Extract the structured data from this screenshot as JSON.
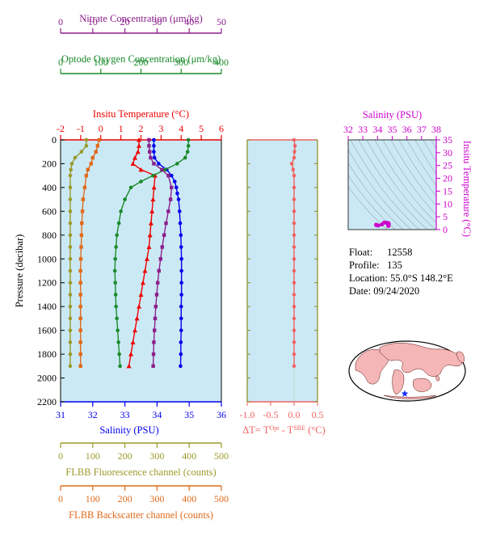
{
  "colors": {
    "nitrate": "#8b1f8b",
    "oxygen": "#1a8a2a",
    "temperature": "#ee0000",
    "salinity": "#0000ee",
    "fluorescence": "#9a9a2a",
    "backscatter": "#e06a1a",
    "deltaT": "#f26060",
    "ts": "#cc00cc",
    "plot_bg": "#cbe9f5"
  },
  "info": {
    "float_label": "Float:",
    "float_value": "12558",
    "profile_label": "Profile:",
    "profile_value": "135",
    "location_label": "Location:",
    "location_value": "55.0°S  148.2°E",
    "date_label": "Date:",
    "date_value": "09/24/2020"
  },
  "chart_data": [
    {
      "type": "line",
      "panel": "main profile",
      "ylabel": "Pressure (decibar)",
      "y_axis": {
        "ticks": [
          0,
          200,
          400,
          600,
          800,
          1000,
          1200,
          1400,
          1600,
          1800,
          2000,
          2200
        ],
        "range": [
          0,
          2200
        ],
        "inverted": true
      },
      "axes": [
        {
          "key": "nitrate",
          "label": "Nitrate Concentration (μm/kg)",
          "range": [
            0,
            50
          ],
          "ticks": [
            0,
            10,
            20,
            30,
            40,
            50
          ],
          "position": "top-1"
        },
        {
          "key": "oxygen",
          "label": "Optode Oxygen Concentration (μm/kg)",
          "range": [
            0,
            400
          ],
          "ticks": [
            0,
            100,
            200,
            300,
            400
          ],
          "position": "top-2"
        },
        {
          "key": "temperature",
          "label": "Insitu Temperature (°C)",
          "range": [
            -2,
            6
          ],
          "ticks": [
            -2,
            -1,
            0,
            1,
            2,
            3,
            4,
            5,
            6
          ],
          "position": "top-3"
        },
        {
          "key": "salinity",
          "label": "Salinity (PSU)",
          "range": [
            31,
            36
          ],
          "ticks": [
            31,
            32,
            33,
            34,
            35,
            36
          ],
          "position": "bottom-1"
        },
        {
          "key": "fluorescence",
          "label": "FLBB Fluorescence channel (counts)",
          "range": [
            0,
            500
          ],
          "ticks": [
            0,
            100,
            200,
            300,
            400,
            500
          ],
          "position": "bottom-2"
        },
        {
          "key": "backscatter",
          "label": "FLBB Backscatter channel (counts)",
          "range": [
            0,
            500
          ],
          "ticks": [
            0,
            100,
            200,
            300,
            400,
            500
          ],
          "position": "bottom-3"
        }
      ],
      "series": [
        {
          "name": "Salinity",
          "axis": "salinity",
          "marker": "circle",
          "points": [
            [
              33.9,
              0
            ],
            [
              33.9,
              50
            ],
            [
              33.9,
              100
            ],
            [
              33.92,
              150
            ],
            [
              34.05,
              200
            ],
            [
              34.3,
              250
            ],
            [
              34.45,
              300
            ],
            [
              34.55,
              350
            ],
            [
              34.6,
              400
            ],
            [
              34.63,
              450
            ],
            [
              34.67,
              500
            ],
            [
              34.7,
              600
            ],
            [
              34.72,
              700
            ],
            [
              34.74,
              800
            ],
            [
              34.75,
              900
            ],
            [
              34.76,
              1000
            ],
            [
              34.76,
              1100
            ],
            [
              34.76,
              1200
            ],
            [
              34.76,
              1300
            ],
            [
              34.75,
              1400
            ],
            [
              34.75,
              1500
            ],
            [
              34.75,
              1600
            ],
            [
              34.74,
              1700
            ],
            [
              34.74,
              1800
            ],
            [
              34.73,
              1900
            ]
          ]
        },
        {
          "name": "Insitu Temperature",
          "axis": "temperature",
          "marker": "triangle",
          "points": [
            [
              1.9,
              0
            ],
            [
              1.9,
              50
            ],
            [
              1.85,
              100
            ],
            [
              1.7,
              150
            ],
            [
              1.6,
              200
            ],
            [
              2.0,
              250
            ],
            [
              2.7,
              300
            ],
            [
              2.65,
              400
            ],
            [
              2.6,
              500
            ],
            [
              2.55,
              600
            ],
            [
              2.5,
              700
            ],
            [
              2.45,
              800
            ],
            [
              2.4,
              900
            ],
            [
              2.3,
              1000
            ],
            [
              2.2,
              1100
            ],
            [
              2.1,
              1200
            ],
            [
              2.0,
              1300
            ],
            [
              1.9,
              1400
            ],
            [
              1.8,
              1500
            ],
            [
              1.7,
              1600
            ],
            [
              1.6,
              1700
            ],
            [
              1.5,
              1800
            ],
            [
              1.4,
              1900
            ]
          ]
        },
        {
          "name": "Optode Oxygen Concentration",
          "axis": "oxygen",
          "marker": "circle",
          "points": [
            [
              318,
              0
            ],
            [
              318,
              50
            ],
            [
              316,
              100
            ],
            [
              310,
              150
            ],
            [
              290,
              200
            ],
            [
              260,
              250
            ],
            [
              230,
              300
            ],
            [
              200,
              350
            ],
            [
              175,
              400
            ],
            [
              160,
              500
            ],
            [
              150,
              600
            ],
            [
              145,
              700
            ],
            [
              140,
              800
            ],
            [
              138,
              900
            ],
            [
              136,
              1000
            ],
            [
              135,
              1100
            ],
            [
              136,
              1200
            ],
            [
              137,
              1300
            ],
            [
              138,
              1400
            ],
            [
              140,
              1500
            ],
            [
              142,
              1600
            ],
            [
              144,
              1700
            ],
            [
              146,
              1800
            ],
            [
              148,
              1900
            ]
          ]
        },
        {
          "name": "Nitrate Concentration",
          "axis": "nitrate",
          "marker": "square",
          "points": [
            [
              27.5,
              0
            ],
            [
              27.5,
              50
            ],
            [
              27.7,
              100
            ],
            [
              28.0,
              150
            ],
            [
              29.0,
              200
            ],
            [
              31.5,
              250
            ],
            [
              33.5,
              300
            ],
            [
              34.5,
              400
            ],
            [
              34.2,
              500
            ],
            [
              33.5,
              600
            ],
            [
              32.8,
              700
            ],
            [
              32.2,
              800
            ],
            [
              31.6,
              900
            ],
            [
              31.1,
              1000
            ],
            [
              30.6,
              1100
            ],
            [
              30.2,
              1200
            ],
            [
              29.9,
              1300
            ],
            [
              29.6,
              1400
            ],
            [
              29.4,
              1500
            ],
            [
              29.2,
              1600
            ],
            [
              29.0,
              1700
            ],
            [
              28.9,
              1800
            ],
            [
              28.8,
              1900
            ]
          ]
        },
        {
          "name": "FLBB Fluorescence channel",
          "axis": "fluorescence",
          "marker": "circle",
          "points": [
            [
              80,
              0
            ],
            [
              80,
              50
            ],
            [
              65,
              100
            ],
            [
              45,
              150
            ],
            [
              35,
              200
            ],
            [
              32,
              250
            ],
            [
              30,
              300
            ],
            [
              30,
              400
            ],
            [
              30,
              500
            ],
            [
              30,
              600
            ],
            [
              30,
              700
            ],
            [
              30,
              800
            ],
            [
              30,
              900
            ],
            [
              30,
              1000
            ],
            [
              30,
              1100
            ],
            [
              30,
              1200
            ],
            [
              30,
              1300
            ],
            [
              30,
              1400
            ],
            [
              30,
              1500
            ],
            [
              30,
              1600
            ],
            [
              30,
              1700
            ],
            [
              30,
              1800
            ],
            [
              30,
              1900
            ]
          ]
        },
        {
          "name": "FLBB Backscatter channel",
          "axis": "backscatter",
          "marker": "square",
          "points": [
            [
              120,
              0
            ],
            [
              115,
              50
            ],
            [
              110,
              100
            ],
            [
              100,
              150
            ],
            [
              95,
              200
            ],
            [
              85,
              250
            ],
            [
              80,
              300
            ],
            [
              75,
              400
            ],
            [
              70,
              500
            ],
            [
              68,
              600
            ],
            [
              66,
              700
            ],
            [
              65,
              800
            ],
            [
              64,
              900
            ],
            [
              63,
              1000
            ],
            [
              62,
              1100
            ],
            [
              62,
              1200
            ],
            [
              62,
              1300
            ],
            [
              62,
              1400
            ],
            [
              62,
              1500
            ],
            [
              62,
              1600
            ],
            [
              62,
              1700
            ],
            [
              62,
              1800
            ],
            [
              62,
              1900
            ]
          ]
        }
      ]
    },
    {
      "type": "line",
      "panel": "delta T",
      "xlabel": "ΔT= T^Opt - T^SBE (°C)",
      "x_range": [
        -1.0,
        0.5
      ],
      "x_ticks": [
        -1.0,
        -0.5,
        0.0,
        0.5
      ],
      "y_range": [
        0,
        2200
      ],
      "series": [
        {
          "name": "ΔT",
          "points": [
            [
              0.0,
              0
            ],
            [
              0.02,
              50
            ],
            [
              0.01,
              100
            ],
            [
              0.0,
              150
            ],
            [
              -0.05,
              200
            ],
            [
              -0.02,
              250
            ],
            [
              0.0,
              300
            ],
            [
              0.0,
              400
            ],
            [
              0.0,
              500
            ],
            [
              0.0,
              600
            ],
            [
              0.0,
              700
            ],
            [
              0.0,
              800
            ],
            [
              0.0,
              900
            ],
            [
              0.0,
              1000
            ],
            [
              0.0,
              1100
            ],
            [
              0.0,
              1200
            ],
            [
              0.0,
              1300
            ],
            [
              0.0,
              1400
            ],
            [
              0.0,
              1500
            ],
            [
              0.0,
              1600
            ],
            [
              0.0,
              1700
            ],
            [
              0.0,
              1800
            ],
            [
              0.0,
              1900
            ]
          ]
        }
      ]
    },
    {
      "type": "scatter",
      "panel": "T-S diagram",
      "xlabel": "Salinity (PSU)",
      "ylabel": "Insitu Temperature (°C)",
      "x_range": [
        32,
        38
      ],
      "x_ticks": [
        32,
        33,
        34,
        35,
        36,
        37,
        38
      ],
      "y_range": [
        0,
        35
      ],
      "y_ticks": [
        0,
        5,
        10,
        15,
        20,
        25,
        30,
        35
      ],
      "points": [
        [
          33.9,
          1.9
        ],
        [
          33.92,
          1.7
        ],
        [
          34.05,
          1.6
        ],
        [
          34.3,
          2.0
        ],
        [
          34.45,
          2.7
        ],
        [
          34.6,
          2.65
        ],
        [
          34.67,
          2.6
        ],
        [
          34.7,
          2.55
        ],
        [
          34.72,
          2.5
        ],
        [
          34.74,
          2.45
        ],
        [
          34.76,
          2.3
        ],
        [
          34.76,
          2.1
        ],
        [
          34.75,
          1.9
        ],
        [
          34.75,
          1.7
        ],
        [
          34.74,
          1.5
        ],
        [
          34.73,
          1.4
        ]
      ]
    }
  ]
}
